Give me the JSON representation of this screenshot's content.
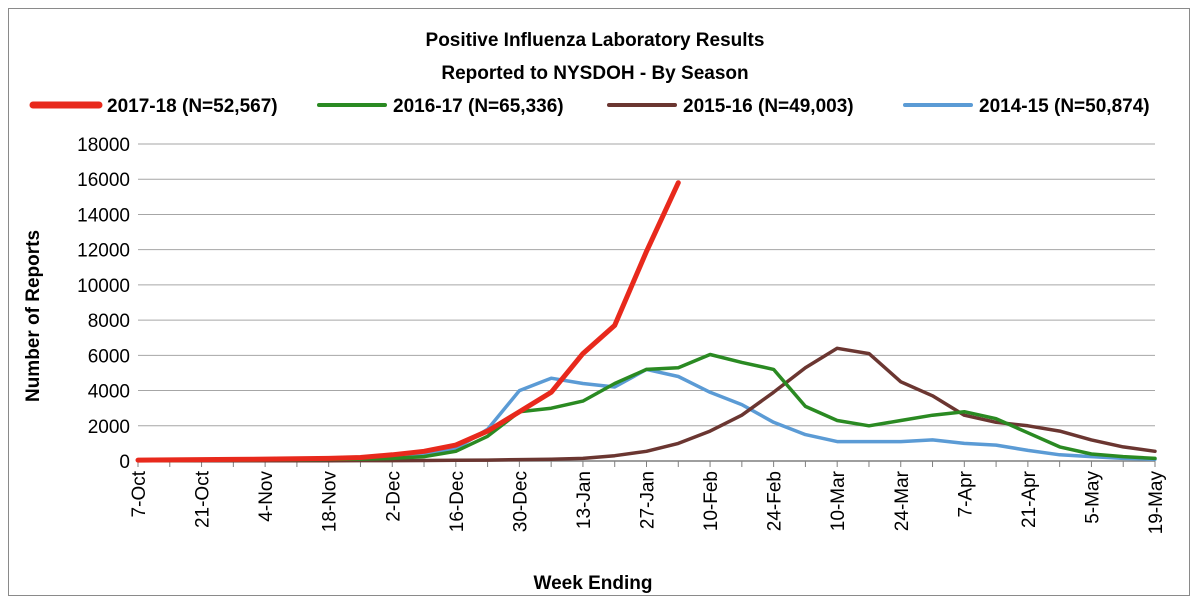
{
  "chart_data": {
    "type": "line",
    "title": "Positive Influenza Laboratory Results",
    "subtitle": "Reported to NYSDOH - By Season",
    "xlabel": "Week Ending",
    "ylabel": "Number of Reports",
    "ylim": [
      0,
      18000
    ],
    "yticks": [
      "0",
      "2000",
      "4000",
      "6000",
      "8000",
      "10000",
      "12000",
      "14000",
      "16000",
      "18000"
    ],
    "x_tick_labels": [
      "7-Oct",
      "21-Oct",
      "4-Nov",
      "18-Nov",
      "2-Dec",
      "16-Dec",
      "30-Dec",
      "13-Jan",
      "27-Jan",
      "10-Feb",
      "24-Feb",
      "10-Mar",
      "24-Mar",
      "7-Apr",
      "21-Apr",
      "5-May",
      "19-May"
    ],
    "x_weeks": [
      "7-Oct",
      "14-Oct",
      "21-Oct",
      "28-Oct",
      "4-Nov",
      "11-Nov",
      "18-Nov",
      "25-Nov",
      "2-Dec",
      "9-Dec",
      "16-Dec",
      "23-Dec",
      "30-Dec",
      "6-Jan",
      "13-Jan",
      "20-Jan",
      "27-Jan",
      "3-Feb",
      "10-Feb",
      "17-Feb",
      "24-Feb",
      "3-Mar",
      "10-Mar",
      "17-Mar",
      "24-Mar",
      "31-Mar",
      "7-Apr",
      "14-Apr",
      "21-Apr",
      "28-Apr",
      "5-May",
      "12-May",
      "19-May"
    ],
    "grid": true,
    "legend_position": "top",
    "series": [
      {
        "name": "2017-18 (N=52,567)",
        "color": "#e8291c",
        "values": [
          50,
          60,
          80,
          90,
          110,
          130,
          150,
          200,
          350,
          550,
          900,
          1700,
          2800,
          3900,
          6100,
          7700,
          11900,
          15800
        ]
      },
      {
        "name": "2016-17 (N=65,336)",
        "color": "#2a8a22",
        "values": [
          20,
          30,
          40,
          50,
          60,
          70,
          90,
          110,
          150,
          250,
          550,
          1400,
          2800,
          3000,
          3400,
          4400,
          5200,
          5300,
          6050,
          5600,
          5200,
          3100,
          2300,
          2000,
          2300,
          2600,
          2800,
          2400,
          1600,
          800,
          400,
          250,
          150
        ]
      },
      {
        "name": "2015-16 (N=49,003)",
        "color": "#6b3631",
        "values": [
          10,
          10,
          10,
          10,
          10,
          10,
          10,
          20,
          20,
          30,
          40,
          50,
          80,
          100,
          150,
          300,
          550,
          1000,
          1700,
          2600,
          3900,
          5300,
          6400,
          6100,
          4500,
          3700,
          2600,
          2200,
          2000,
          1700,
          1200,
          800,
          550
        ]
      },
      {
        "name": "2014-15 (N=50,874)",
        "color": "#5b9bd5",
        "values": [
          30,
          40,
          50,
          60,
          70,
          90,
          110,
          150,
          250,
          400,
          700,
          1800,
          4000,
          4700,
          4400,
          4200,
          5200,
          4800,
          3900,
          3200,
          2200,
          1500,
          1100,
          1100,
          1100,
          1200,
          1000,
          900,
          600,
          350,
          250,
          150,
          100
        ]
      }
    ]
  }
}
